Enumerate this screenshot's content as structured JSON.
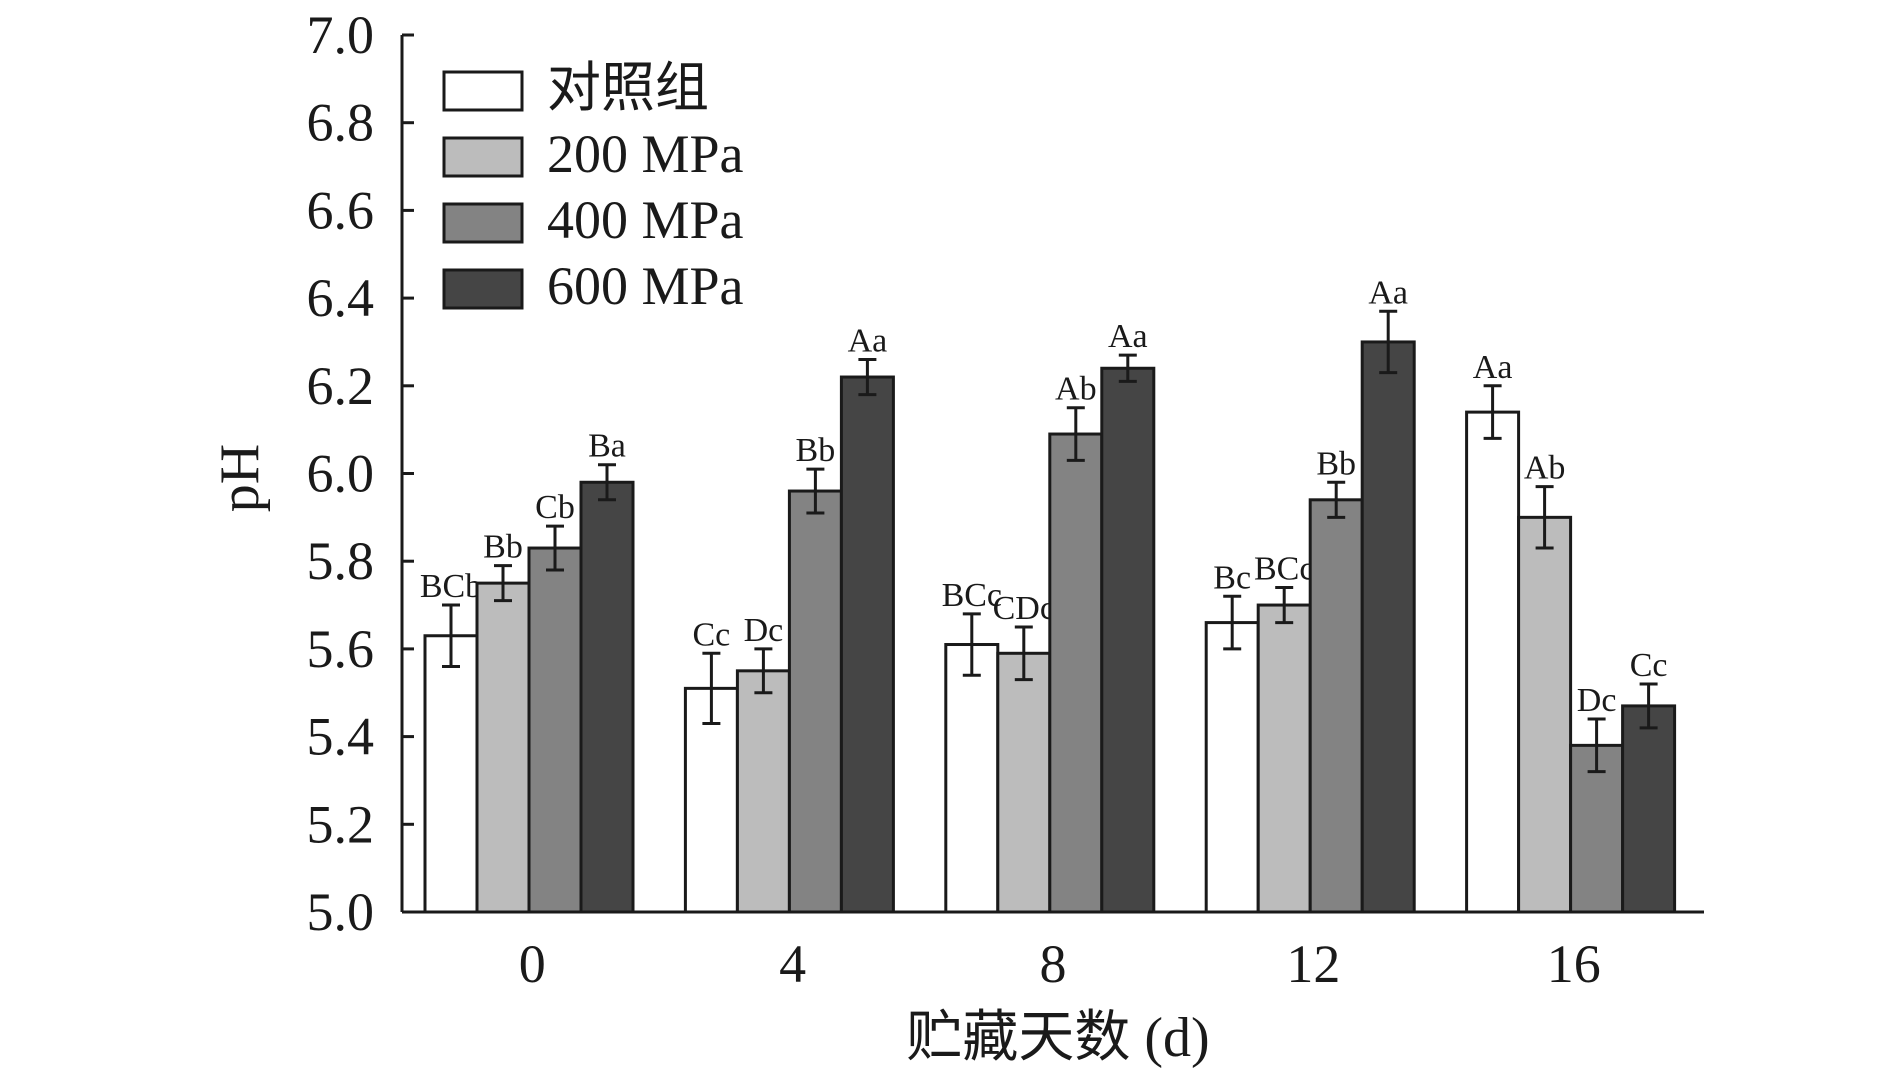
{
  "chart_data": {
    "type": "bar",
    "title": "",
    "xlabel": "贮藏天数 (d)",
    "ylabel": "pH",
    "ylim": [
      5.0,
      7.0
    ],
    "yticks": [
      "5.0",
      "5.2",
      "5.4",
      "5.6",
      "5.8",
      "6.0",
      "6.2",
      "6.4",
      "6.6",
      "6.8",
      "7.0"
    ],
    "categories": [
      "0",
      "4",
      "8",
      "12",
      "16"
    ],
    "legend_position": "top-left",
    "series": [
      {
        "name": "对照组",
        "color": "#ffffff",
        "values": [
          5.63,
          5.51,
          5.61,
          5.66,
          6.14
        ],
        "errors": [
          0.07,
          0.08,
          0.07,
          0.06,
          0.06
        ],
        "labels": [
          "BCb",
          "Cc",
          "BCc",
          "Bc",
          "Aa"
        ]
      },
      {
        "name": "200 MPa",
        "color": "#bcbcbc",
        "values": [
          5.75,
          5.55,
          5.59,
          5.7,
          5.9
        ],
        "errors": [
          0.04,
          0.05,
          0.06,
          0.04,
          0.07
        ],
        "labels": [
          "Bb",
          "Dc",
          "CDc",
          "BCc",
          "Ab"
        ]
      },
      {
        "name": "400 MPa",
        "color": "#838383",
        "values": [
          5.83,
          5.96,
          6.09,
          5.94,
          5.38
        ],
        "errors": [
          0.05,
          0.05,
          0.06,
          0.04,
          0.06
        ],
        "labels": [
          "Cb",
          "Bb",
          "Ab",
          "Bb",
          "Dc"
        ]
      },
      {
        "name": "600 MPa",
        "color": "#454545",
        "values": [
          5.98,
          6.22,
          6.24,
          6.3,
          5.47
        ],
        "errors": [
          0.04,
          0.04,
          0.03,
          0.07,
          0.05
        ],
        "labels": [
          "Ba",
          "Aa",
          "Aa",
          "Aa",
          "Cc"
        ]
      }
    ]
  }
}
